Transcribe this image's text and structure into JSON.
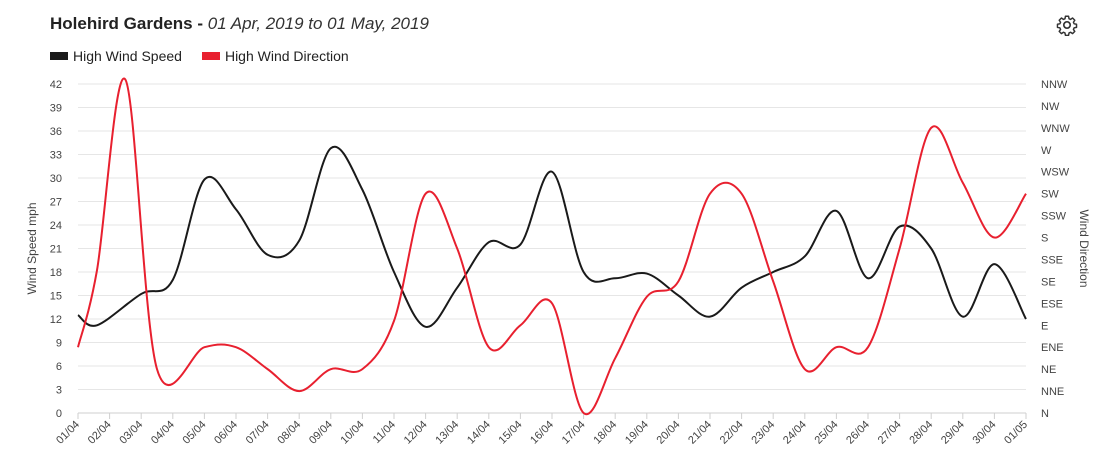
{
  "header": {
    "station": "Holehird Gardens",
    "separator": " - ",
    "range": "01 Apr, 2019 to 01 May, 2019"
  },
  "icons": {
    "settings": "gear-icon"
  },
  "colors": {
    "speed": "#1a1a1a",
    "direction": "#e8202f",
    "grid": "#e6e6e6"
  },
  "chart_data": {
    "type": "line",
    "xlabel": "",
    "ylabel": "Wind Speed mph",
    "y2label": "Wind Direction",
    "x": [
      "01/04",
      "02/04",
      "03/04",
      "04/04",
      "05/04",
      "06/04",
      "07/04",
      "08/04",
      "09/04",
      "10/04",
      "11/04",
      "12/04",
      "13/04",
      "14/04",
      "15/04",
      "16/04",
      "17/04",
      "18/04",
      "19/04",
      "20/04",
      "21/04",
      "22/04",
      "23/04",
      "24/04",
      "25/04",
      "26/04",
      "27/04",
      "28/04",
      "29/04",
      "30/04",
      "01/05"
    ],
    "ylim": [
      0,
      42
    ],
    "yticks": [
      0,
      3,
      6,
      9,
      12,
      15,
      18,
      21,
      24,
      27,
      30,
      33,
      36,
      39,
      42
    ],
    "y2ticks": [
      "N",
      "NNE",
      "NE",
      "ENE",
      "E",
      "ESE",
      "SE",
      "SSE",
      "S",
      "SSW",
      "SW",
      "WSW",
      "W",
      "WNW",
      "NW",
      "NNW"
    ],
    "legend_position": "top-left",
    "grid": true,
    "series": [
      {
        "name": "High Wind Speed",
        "axis": "left",
        "points": [
          [
            0,
            12.5
          ],
          [
            0.6,
            11.2
          ],
          [
            2,
            15.2
          ],
          [
            3,
            17
          ],
          [
            4,
            29.8
          ],
          [
            5,
            26
          ],
          [
            6,
            20.2
          ],
          [
            7,
            22
          ],
          [
            8,
            33.8
          ],
          [
            9,
            28.5
          ],
          [
            10,
            18
          ],
          [
            11,
            11
          ],
          [
            12,
            16
          ],
          [
            13,
            21.8
          ],
          [
            14,
            21.5
          ],
          [
            15,
            30.8
          ],
          [
            16,
            18
          ],
          [
            17,
            17.2
          ],
          [
            18,
            17.8
          ],
          [
            19,
            15
          ],
          [
            20,
            12.3
          ],
          [
            21,
            16
          ],
          [
            22,
            18
          ],
          [
            23,
            20
          ],
          [
            24,
            25.8
          ],
          [
            25,
            17.2
          ],
          [
            26,
            23.8
          ],
          [
            27,
            21
          ],
          [
            28,
            12.3
          ],
          [
            29,
            19
          ],
          [
            30,
            12
          ]
        ]
      },
      {
        "name": "High Wind Direction",
        "axis": "right",
        "points": [
          [
            0,
            3
          ],
          [
            0.6,
            6.5
          ],
          [
            1.5,
            15.2
          ],
          [
            2.5,
            2
          ],
          [
            4,
            3
          ],
          [
            5,
            3
          ],
          [
            6,
            2
          ],
          [
            7,
            1
          ],
          [
            8,
            2
          ],
          [
            9,
            2
          ],
          [
            10,
            4.2
          ],
          [
            11,
            10
          ],
          [
            12,
            7.5
          ],
          [
            13,
            3
          ],
          [
            14,
            4
          ],
          [
            15,
            5
          ],
          [
            16,
            0
          ],
          [
            17,
            2.5
          ],
          [
            18,
            5.3
          ],
          [
            19,
            6
          ],
          [
            20,
            10
          ],
          [
            21,
            10
          ],
          [
            22,
            6
          ],
          [
            23,
            2
          ],
          [
            24,
            3
          ],
          [
            25,
            3
          ],
          [
            26,
            7.5
          ],
          [
            27,
            13
          ],
          [
            28,
            10.5
          ],
          [
            29,
            8
          ],
          [
            30,
            10
          ]
        ]
      }
    ]
  }
}
